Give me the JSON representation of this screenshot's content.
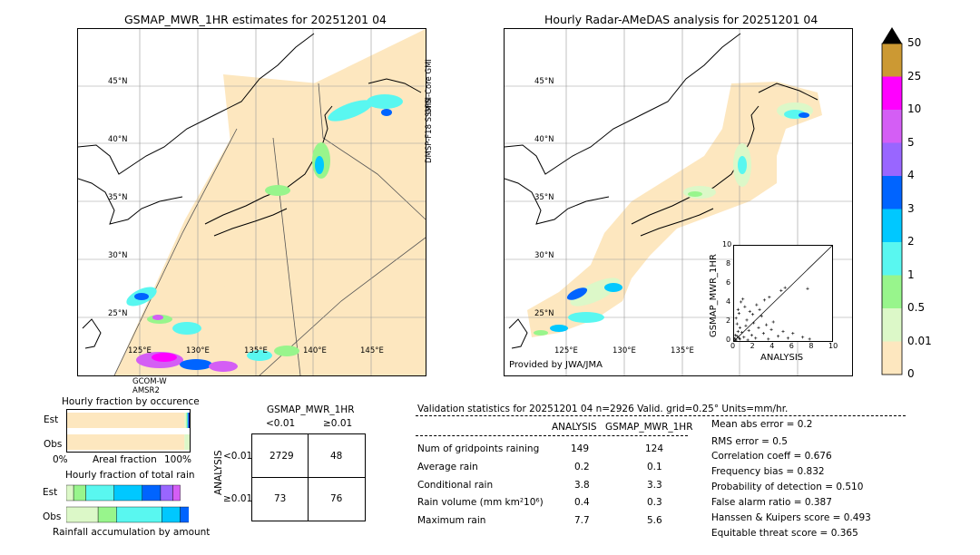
{
  "left_map": {
    "title": "GSMAP_MWR_1HR estimates for 20251201 04",
    "lat_labels": [
      "45°N",
      "40°N",
      "35°N",
      "30°N",
      "25°N"
    ],
    "lon_labels": [
      "125°E",
      "130°E",
      "135°E",
      "140°E",
      "145°E"
    ],
    "sensor_labels": [
      "GPM-Core GMI",
      "DMSP-F18 SSMIS",
      "GCOM-W AMSR2"
    ]
  },
  "right_map": {
    "title": "Hourly Radar-AMeDAS analysis for 20251201 04",
    "lat_labels": [
      "45°N",
      "40°N",
      "35°N",
      "30°N",
      "25°N"
    ],
    "lon_labels": [
      "125°E",
      "130°E",
      "135°E"
    ],
    "credit": "Provided by JWA/JMA"
  },
  "colorbar": {
    "ticks": [
      "0",
      "0.01",
      "0.5",
      "1",
      "2",
      "3",
      "4",
      "5",
      "10",
      "25",
      "50"
    ],
    "colors": [
      "#fde7bf",
      "#dcf8c8",
      "#98f58c",
      "#59f7f0",
      "#00c8ff",
      "#0064ff",
      "#9966ff",
      "#d45ef5",
      "#ff00ff",
      "#cc9933"
    ],
    "over_color": "#000000"
  },
  "scatter": {
    "xlabel": "ANALYSIS",
    "ylabel": "GSMAP_MWR_1HR",
    "ticks": [
      "0",
      "2",
      "4",
      "6",
      "8",
      "10"
    ],
    "range": [
      0,
      10
    ]
  },
  "fractions": {
    "occurrence_title": "Hourly fraction by occurence",
    "total_title": "Hourly fraction of total rain",
    "row_labels": [
      "Est",
      "Obs"
    ],
    "axis_labels": [
      "0%",
      "Areal fraction",
      "100%"
    ],
    "footer": "Rainfall accumulation by amount"
  },
  "contingency": {
    "title": "GSMAP_MWR_1HR",
    "col_headers": [
      "<0.01",
      "≥0.01"
    ],
    "row_headers": [
      "<0.01",
      "≥0.01"
    ],
    "side_label": "ANALYSIS",
    "cells": [
      [
        "2729",
        "48"
      ],
      [
        "73",
        "76"
      ]
    ]
  },
  "validation": {
    "header": "Validation statistics for 20251201 04  n=2926 Valid. grid=0.25° Units=mm/hr.",
    "col_headers": [
      "ANALYSIS",
      "GSMAP_MWR_1HR"
    ],
    "rows": [
      {
        "label": "Num of gridpoints raining",
        "analysis": "149",
        "gsmap": "124"
      },
      {
        "label": "Average rain",
        "analysis": "0.2",
        "gsmap": "0.1"
      },
      {
        "label": "Conditional rain",
        "analysis": "3.8",
        "gsmap": "3.3"
      },
      {
        "label": "Rain volume (mm km²10⁶)",
        "analysis": "0.4",
        "gsmap": "0.3"
      },
      {
        "label": "Maximum rain",
        "analysis": "7.7",
        "gsmap": "5.6"
      }
    ],
    "scores": [
      "Mean abs error =    0.2",
      "RMS error =    0.5",
      "Correlation coeff =  0.676",
      "Frequency bias =  0.832",
      "Probability of detection =  0.510",
      "False alarm ratio =  0.387",
      "Hanssen & Kuipers score =  0.493",
      "Equitable threat score =  0.365"
    ]
  },
  "chart_data": [
    {
      "type": "scatter",
      "title": "",
      "xlabel": "ANALYSIS",
      "ylabel": "GSMAP_MWR_1HR",
      "xlim": [
        0,
        10
      ],
      "ylim": [
        0,
        10
      ],
      "points": [
        [
          0.1,
          0.2
        ],
        [
          0.2,
          0.1
        ],
        [
          0.3,
          0.5
        ],
        [
          0.5,
          0.3
        ],
        [
          0.4,
          1.0
        ],
        [
          0.6,
          0.2
        ],
        [
          0.8,
          0.9
        ],
        [
          1.0,
          0.4
        ],
        [
          1.2,
          1.6
        ],
        [
          0.3,
          1.8
        ],
        [
          0.2,
          2.4
        ],
        [
          0.5,
          2.9
        ],
        [
          0.4,
          3.3
        ],
        [
          0.7,
          4.1
        ],
        [
          0.9,
          4.4
        ],
        [
          1.1,
          3.6
        ],
        [
          1.3,
          2.2
        ],
        [
          1.5,
          1.1
        ],
        [
          1.8,
          0.6
        ],
        [
          2.0,
          1.9
        ],
        [
          2.2,
          0.3
        ],
        [
          2.5,
          1.4
        ],
        [
          2.8,
          2.6
        ],
        [
          3.0,
          0.8
        ],
        [
          3.3,
          1.7
        ],
        [
          3.5,
          0.2
        ],
        [
          3.8,
          1.2
        ],
        [
          4.0,
          2.0
        ],
        [
          4.5,
          0.5
        ],
        [
          5.0,
          1.0
        ],
        [
          5.5,
          0.3
        ],
        [
          6.0,
          0.8
        ],
        [
          7.0,
          0.4
        ],
        [
          7.7,
          0.2
        ],
        [
          1.6,
          3.1
        ],
        [
          2.3,
          3.8
        ],
        [
          2.6,
          3.3
        ],
        [
          3.1,
          4.3
        ],
        [
          3.6,
          4.6
        ],
        [
          4.8,
          5.3
        ],
        [
          5.2,
          5.6
        ],
        [
          7.5,
          5.5
        ],
        [
          0.1,
          0.0
        ],
        [
          0.0,
          0.3
        ],
        [
          0.15,
          0.6
        ],
        [
          0.6,
          1.4
        ],
        [
          1.4,
          0.1
        ],
        [
          1.9,
          2.8
        ]
      ]
    },
    {
      "type": "table",
      "title": "GSMAP_MWR_1HR",
      "rows": [
        "<0.01",
        "≥0.01"
      ],
      "columns": [
        "<0.01",
        "≥0.01"
      ],
      "values": [
        [
          2729,
          48
        ],
        [
          73,
          76
        ]
      ]
    },
    {
      "type": "bar",
      "title": "Hourly fraction by occurence",
      "categories": [
        "Est",
        "Obs"
      ],
      "series": [
        {
          "values": [
            0.958,
            0.958
          ]
        },
        {
          "values": [
            0.015,
            0.085
          ]
        },
        {
          "values": [
            0.008,
            0.01
          ]
        },
        {
          "values": [
            0.006,
            0.005
          ]
        },
        {
          "values": [
            0.005,
            0.004
          ]
        },
        {
          "values": [
            0.008,
            0.004
          ]
        }
      ]
    },
    {
      "type": "bar",
      "title": "Hourly fraction of total rain",
      "categories": [
        "Est",
        "Obs"
      ],
      "series": [
        {
          "values": [
            0.0,
            0.0
          ]
        },
        {
          "values": [
            0.06,
            0.26
          ]
        },
        {
          "values": [
            0.1,
            0.15
          ]
        },
        {
          "values": [
            0.23,
            0.37
          ]
        },
        {
          "values": [
            0.23,
            0.15
          ]
        },
        {
          "values": [
            0.15,
            0.13
          ]
        },
        {
          "values": [
            0.1,
            0.04
          ]
        },
        {
          "values": [
            0.06,
            0.03
          ]
        }
      ]
    }
  ]
}
